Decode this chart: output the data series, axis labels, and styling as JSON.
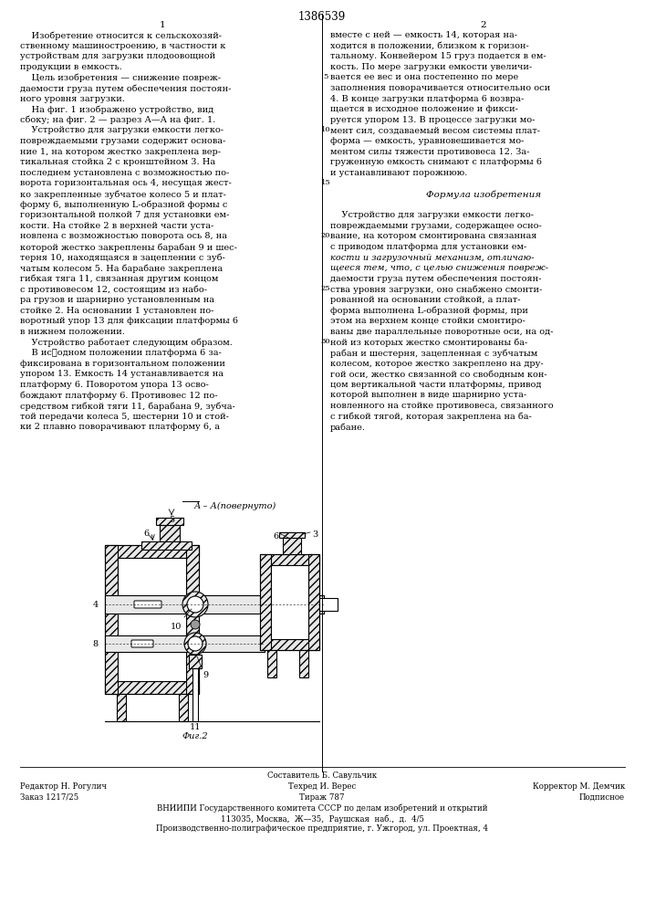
{
  "patent_number": "1386539",
  "col1_number": "1",
  "col2_number": "2",
  "bg_color": "#ffffff",
  "text_color": "#000000",
  "font_size_main": 7.0,
  "font_size_header": 8.5,
  "font_size_footer": 6.2,
  "col1_text_lines": [
    "    Изобретение относится к сельскохозяй-",
    "ственному машиностроению, в частности к",
    "устройствам для загрузки плодоовощной",
    "продукции в емкость.",
    "    Цель изобретения — снижение повреж-",
    "даемости груза путем обеспечения постоян-",
    "ного уровня загрузки.",
    "    На фиг. 1 изображено устройство, вид",
    "сбоку; на фиг. 2 — разрез А—А на фиг. 1.",
    "    Устройство для загрузки емкости легко-",
    "повреждаемыми грузами содержит основа-",
    "ние 1, на котором жестко закреплена вер-",
    "тикальная стойка 2 с кронштейном 3. На",
    "последнем установлена с возможностью по-",
    "ворота горизонтальная ось 4, несущая жест-",
    "ко закрепленные зубчатое колесо 5 и плат-",
    "форму 6, выполненную L-образной формы с",
    "горизонтальной полкой 7 для установки ем-",
    "кости. На стойке 2 в верхней части уста-",
    "новлена с возможностью поворота ось 8, на",
    "которой жестко закреплены барабан 9 и шес-",
    "терня 10, находящаяся в зацеплении с зуб-",
    "чатым колесом 5. На барабане закреплена",
    "гибкая тяга 11, связанная другим концом",
    "с противовесом 12, состоящим из набо-",
    "ра грузов и шарнирно установленным на",
    "стойке 2. На основании 1 установлен по-",
    "воротный упор 13 для фиксации платформы 6",
    "в нижнем положении.",
    "    Устройство работает следующим образом.",
    "    В ис䑞одном положении платформа 6 за-",
    "фиксирована в горизонтальном положении",
    "упором 13. Емкость 14 устанавливается на",
    "платформу 6. Поворотом упора 13 осво-",
    "бождают платформу 6. Противовес 12 по-",
    "средством гибкой тяги 11, барабана 9, зубча-",
    "той передачи колеса 5, шестерни 10 и стой-",
    "ки 2 плавно поворачивают платформу 6, а"
  ],
  "col2_text_lines": [
    "вместе с ней — емкость 14, которая на-",
    "ходится в положении, близком к горизон-",
    "тальному. Конвейером 15 груз подается в ем-",
    "кость. По мере загрузки емкости увеличи-",
    "вается ее вес и она постепенно по мере",
    "заполнения поворачивается относительно оси",
    "4. В конце загрузки платформа 6 возвра-",
    "щается в исходное положение и фикси-",
    "руется упором 13. В процессе загрузки мо-",
    "мент сил, создаваемый весом системы плат-",
    "форма — емкость, уравновешивается мо-",
    "ментом силы тяжести противовеса 12. За-",
    "груженную емкость снимают с платформы 6",
    "и устанавливают порожнюю.",
    "",
    "             Формула изобретения",
    "",
    "    Устройство для загрузки емкости легко-",
    "повреждаемыми грузами, содержащее осно-",
    "вание, на котором смонтирована связанная",
    "с приводом платформа для установки ем-",
    "кости и загрузочный механизм, отличаю-",
    "щееся тем, что, с целью снижения повреж-",
    "даемости груза путем обеспечения постоян-",
    "ства уровня загрузки, оно снабжено смонти-",
    "рованной на основании стойкой, а плат-",
    "форма выполнена L-образной формы, при",
    "этом на верхнем конце стойки смонтиро-",
    "ваны две параллельные поворотные оси, на од-",
    "ной из которых жестко смонтированы ба-",
    "рабан и шестерня, зацепленная с зубчатым",
    "колесом, которое жестко закреплено на дру-",
    "гой оси, жестко связанной со свободным кон-",
    "цом вертикальной части платформы, привод",
    "которой выполнен в виде шарнирно уста-",
    "новленного на стойке противовеса, связанного",
    "с гибкой тягой, которая закреплена на ба-",
    "рабане."
  ],
  "line_numbers_right": [
    "5",
    "10",
    "15",
    "20",
    "25",
    "30"
  ],
  "line_numbers_y": [
    5,
    10,
    14,
    19,
    24,
    30
  ],
  "diagram_label": "А – А(повернуто)",
  "fig_label": "Фиг.2",
  "footer_line1": "Составитель Б. Савульчик",
  "footer_line2_left": "Редактор Н. Рогулич",
  "footer_line2_mid": "Техред И. Верес",
  "footer_line2_right": "Корректор М. Демчик",
  "footer_line3_left": "Заказ 1217/25",
  "footer_line3_mid": "Тираж 787",
  "footer_line3_right": "Подписное",
  "footer_line4": "ВНИИПИ Государственного комитета СССР по делам изобретений и открытий",
  "footer_line5": "113035, Москва,  Ж—35,  Раушская  наб.,  д.  4/5",
  "footer_line6": "Производственно-полиграфическое предприятие, г. Ужгород, ул. Проектная, 4"
}
